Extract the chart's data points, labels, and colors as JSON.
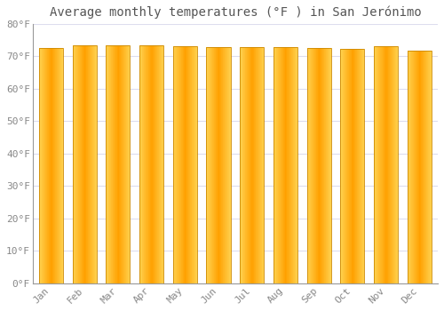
{
  "title": "Average monthly temperatures (°F ) in San Jerónimo",
  "months": [
    "Jan",
    "Feb",
    "Mar",
    "Apr",
    "May",
    "Jun",
    "Jul",
    "Aug",
    "Sep",
    "Oct",
    "Nov",
    "Dec"
  ],
  "values": [
    72.5,
    73.3,
    73.5,
    73.3,
    73.0,
    72.7,
    72.9,
    72.7,
    72.5,
    72.2,
    73.2,
    71.8
  ],
  "ylim": [
    0,
    80
  ],
  "yticks": [
    0,
    10,
    20,
    30,
    40,
    50,
    60,
    70,
    80
  ],
  "ytick_labels": [
    "0°F",
    "10°F",
    "20°F",
    "30°F",
    "40°F",
    "50°F",
    "60°F",
    "70°F",
    "80°F"
  ],
  "bar_color_center": "#FFA000",
  "bar_color_edge": "#FFD060",
  "bar_border_color": "#CC8800",
  "background_color": "#FFFFFF",
  "grid_color": "#DDDDEE",
  "title_fontsize": 10,
  "tick_fontsize": 8,
  "font_family": "monospace",
  "tick_color": "#888888",
  "spine_color": "#999999",
  "bar_width": 0.72
}
